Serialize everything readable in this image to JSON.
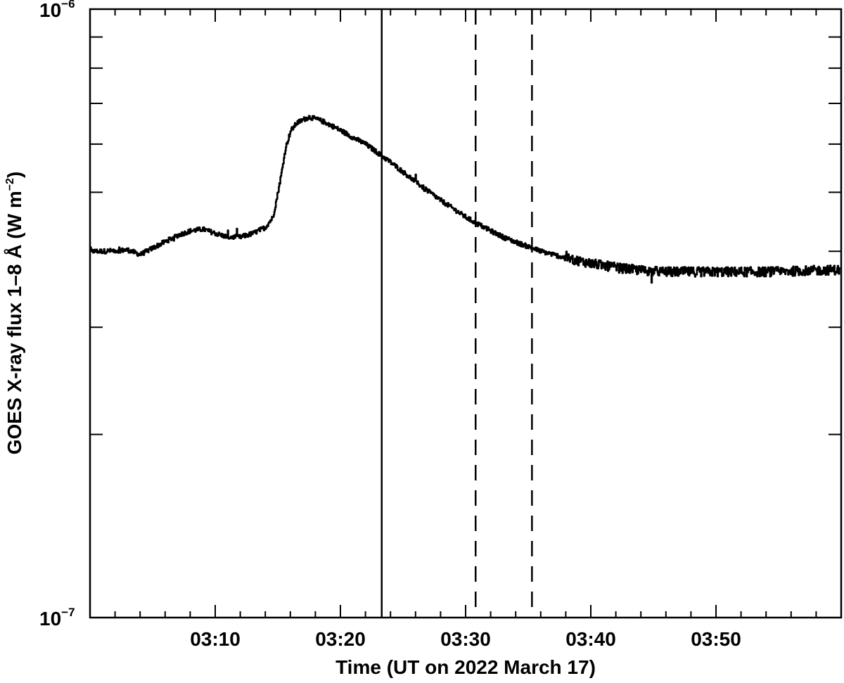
{
  "chart_data": {
    "type": "line",
    "title": "",
    "xlabel": "Time (UT on 2022 March 17)",
    "ylabel": "GOES X-ray flux 1–8 Å (W m",
    "ylabel_unit_exponent": "−2",
    "ylabel_close": ")",
    "y_scale": "log",
    "ylim": [
      1e-07,
      1e-06
    ],
    "xlim": [
      "03:00",
      "03:60"
    ],
    "x_ticks": [
      {
        "label": "03:10",
        "minute": 10
      },
      {
        "label": "03:20",
        "minute": 20
      },
      {
        "label": "03:30",
        "minute": 30
      },
      {
        "label": "03:40",
        "minute": 40
      },
      {
        "label": "03:50",
        "minute": 50
      }
    ],
    "y_ticks": [
      {
        "base": "10",
        "exp": "−6",
        "value": 1e-06
      },
      {
        "base": "10",
        "exp": "−7",
        "value": 1e-07
      }
    ],
    "series": [
      {
        "x_minutes": [
          0,
          1,
          2,
          3,
          4,
          5,
          6,
          7,
          8,
          9,
          10,
          11,
          12,
          13,
          14,
          14.6,
          15,
          15.3,
          15.6,
          16,
          16.5,
          17,
          17.5,
          18,
          18.5,
          19,
          20,
          21,
          22,
          23,
          24,
          25,
          26,
          27,
          28,
          29,
          30,
          31,
          32,
          33,
          34,
          35,
          36,
          37,
          38,
          40,
          42,
          44,
          46,
          48,
          50,
          52,
          54,
          56,
          58,
          59.9
        ],
        "flux": [
          4e-07,
          4e-07,
          4.01e-07,
          4.02e-07,
          3.95e-07,
          4.05e-07,
          4.15e-07,
          4.25e-07,
          4.32e-07,
          4.35e-07,
          4.28e-07,
          4.22e-07,
          4.22e-07,
          4.28e-07,
          4.38e-07,
          4.55e-07,
          5e-07,
          5.4e-07,
          5.9e-07,
          6.3e-07,
          6.5e-07,
          6.58e-07,
          6.65e-07,
          6.6e-07,
          6.55e-07,
          6.48e-07,
          6.32e-07,
          6.15e-07,
          6e-07,
          5.8e-07,
          5.6e-07,
          5.4e-07,
          5.2e-07,
          5.02e-07,
          4.85e-07,
          4.7e-07,
          4.55e-07,
          4.43e-07,
          4.32e-07,
          4.22e-07,
          4.14e-07,
          4.07e-07,
          4e-07,
          3.95e-07,
          3.9e-07,
          3.82e-07,
          3.76e-07,
          3.72e-07,
          3.7e-07,
          3.7e-07,
          3.7e-07,
          3.7e-07,
          3.7e-07,
          3.71e-07,
          3.72e-07,
          3.73e-07
        ]
      }
    ],
    "vertical_lines": [
      {
        "minute": 23.3,
        "style": "solid"
      },
      {
        "minute": 30.8,
        "style": "dashed"
      },
      {
        "minute": 35.3,
        "style": "dashed"
      }
    ],
    "line_color": "#000000",
    "grid": false,
    "legend": "none"
  }
}
